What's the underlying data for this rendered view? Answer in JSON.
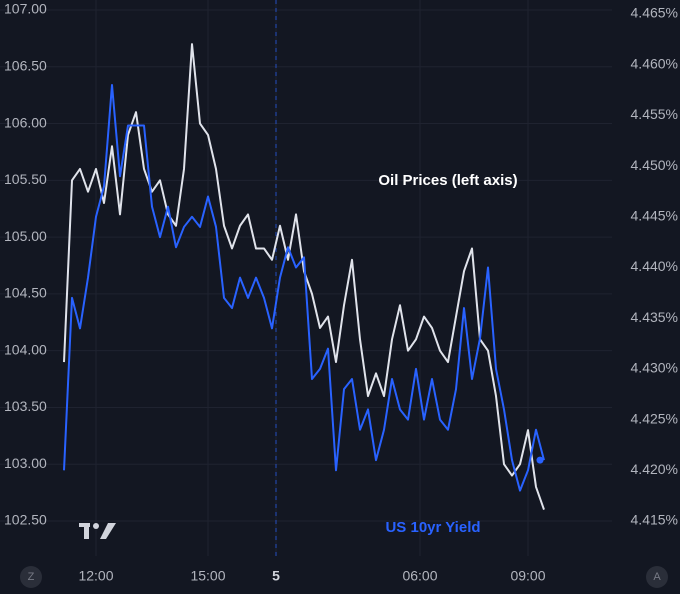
{
  "chart_data": {
    "type": "line",
    "annotations": [
      "Oil Prices (left axis)",
      "US 10yr Yield"
    ],
    "x": [
      0,
      2,
      4,
      6,
      8,
      10,
      12,
      14,
      16,
      18,
      20,
      22,
      24,
      26,
      28,
      30,
      32,
      34,
      36,
      38,
      40,
      42,
      44,
      46,
      48,
      50,
      52,
      54,
      56,
      58,
      60,
      62,
      64,
      66,
      68,
      70,
      72,
      74,
      76,
      78,
      80,
      82,
      84,
      86,
      88,
      90,
      92,
      94,
      96,
      98,
      100,
      102,
      104,
      106,
      108,
      110,
      112,
      114,
      116,
      118,
      120
    ],
    "xlim": [
      -16,
      137
    ],
    "xticks": [
      {
        "value": 8,
        "label": "12:00"
      },
      {
        "value": 36,
        "label": "15:00"
      },
      {
        "value": 53,
        "label": "5"
      },
      {
        "value": 89,
        "label": "06:00"
      },
      {
        "value": 116,
        "label": "09:00"
      }
    ],
    "ylim": [
      102.5,
      107
    ],
    "yticks": [
      {
        "value": 102.5,
        "label": "102.50"
      },
      {
        "value": 103,
        "label": "103.00"
      },
      {
        "value": 103.5,
        "label": "103.50"
      },
      {
        "value": 104,
        "label": "104.00"
      },
      {
        "value": 104.5,
        "label": "104.50"
      },
      {
        "value": 105,
        "label": "105.00"
      },
      {
        "value": 105.5,
        "label": "105.50"
      },
      {
        "value": 106,
        "label": "106.00"
      },
      {
        "value": 106.5,
        "label": "106.50"
      },
      {
        "value": 107,
        "label": "107.00"
      }
    ],
    "y2lim": [
      4.415,
      4.465
    ],
    "y2ticks": [
      {
        "value": 4.415,
        "label": "4.415%"
      },
      {
        "value": 4.42,
        "label": "4.420%"
      },
      {
        "value": 4.425,
        "label": "4.425%"
      },
      {
        "value": 4.43,
        "label": "4.430%"
      },
      {
        "value": 4.435,
        "label": "4.435%"
      },
      {
        "value": 4.44,
        "label": "4.440%"
      },
      {
        "value": 4.445,
        "label": "4.445%"
      },
      {
        "value": 4.45,
        "label": "4.450%"
      },
      {
        "value": 4.455,
        "label": "4.455%"
      },
      {
        "value": 4.46,
        "label": "4.460%"
      },
      {
        "value": 4.465,
        "label": "4.465%"
      }
    ],
    "grid": true,
    "series": [
      {
        "name": "Oil Prices",
        "color": "#e0e3eb",
        "values": [
          103.9,
          105.5,
          105.6,
          105.4,
          105.6,
          105.3,
          105.8,
          105.2,
          105.9,
          106.1,
          105.6,
          105.4,
          105.5,
          105.2,
          105.1,
          105.6,
          106.7,
          106.0,
          105.9,
          105.6,
          105.1,
          104.9,
          105.1,
          105.2,
          104.9,
          104.9,
          104.8,
          105.1,
          104.8,
          105.2,
          104.7,
          104.5,
          104.2,
          104.3,
          103.9,
          104.4,
          104.8,
          104.1,
          103.6,
          103.8,
          103.6,
          104.1,
          104.4,
          104.0,
          104.1,
          104.3,
          104.2,
          104.0,
          103.9,
          104.3,
          104.7,
          104.9,
          104.1,
          104.0,
          103.6,
          103.0,
          102.9,
          103.0,
          103.3,
          102.8,
          102.6
        ]
      },
      {
        "name": "US 10yr Yield",
        "color": "#2962ff",
        "axis": "y2",
        "values": [
          4.42,
          4.437,
          4.434,
          4.439,
          4.445,
          4.448,
          4.458,
          4.449,
          4.454,
          4.454,
          4.454,
          4.446,
          4.443,
          4.446,
          4.442,
          4.444,
          4.445,
          4.444,
          4.447,
          4.444,
          4.437,
          4.436,
          4.439,
          4.437,
          4.439,
          4.437,
          4.434,
          4.439,
          4.442,
          4.44,
          4.441,
          4.429,
          4.43,
          4.432,
          4.42,
          4.428,
          4.429,
          4.424,
          4.426,
          4.421,
          4.424,
          4.429,
          4.426,
          4.425,
          4.43,
          4.425,
          4.429,
          4.425,
          4.424,
          4.428,
          4.436,
          4.429,
          4.433,
          4.44,
          4.43,
          4.426,
          4.421,
          4.418,
          4.42,
          4.424,
          4.421
        ]
      }
    ]
  }
}
